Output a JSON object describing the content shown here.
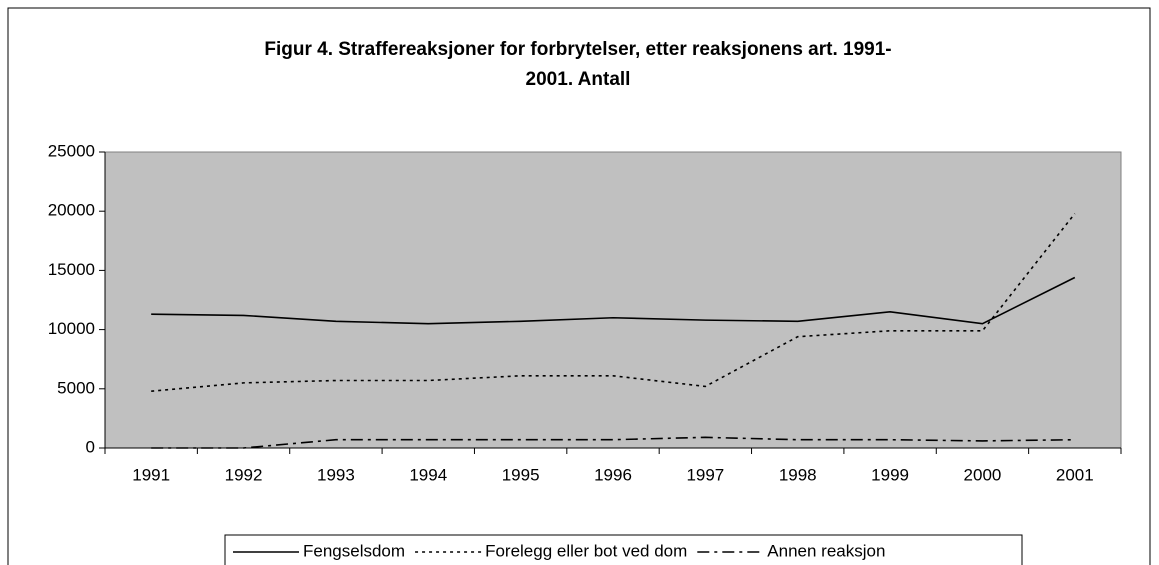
{
  "chart_data": {
    "type": "line",
    "title": [
      "Figur 4. Straffereaksjoner for  forbrytelser, etter reaksjonens art. 1991-",
      "2001. Antall"
    ],
    "categories": [
      "1991",
      "1992",
      "1993",
      "1994",
      "1995",
      "1996",
      "1997",
      "1998",
      "1999",
      "2000",
      "2001"
    ],
    "series": [
      {
        "name": "Fengselsdom",
        "color": "#000000",
        "style": "solid",
        "values": [
          11300,
          11200,
          10700,
          10500,
          10700,
          11000,
          10800,
          10700,
          11500,
          10500,
          14400
        ]
      },
      {
        "name": "Forelegg eller bot ved dom",
        "color": "#000000",
        "style": "dotted",
        "values": [
          4800,
          5500,
          5700,
          5700,
          6100,
          6100,
          5200,
          9400,
          9900,
          9900,
          19800
        ]
      },
      {
        "name": "Annen reaksjon",
        "color": "#000000",
        "style": "dash-dot",
        "values": [
          0,
          0,
          700,
          700,
          700,
          700,
          900,
          700,
          700,
          600,
          700
        ]
      }
    ],
    "ylim": [
      0,
      25000
    ],
    "yticks": [
      0,
      5000,
      10000,
      15000,
      20000,
      25000
    ],
    "grid": false,
    "legend": "bottom",
    "plot_background": "#c0c0c0"
  }
}
